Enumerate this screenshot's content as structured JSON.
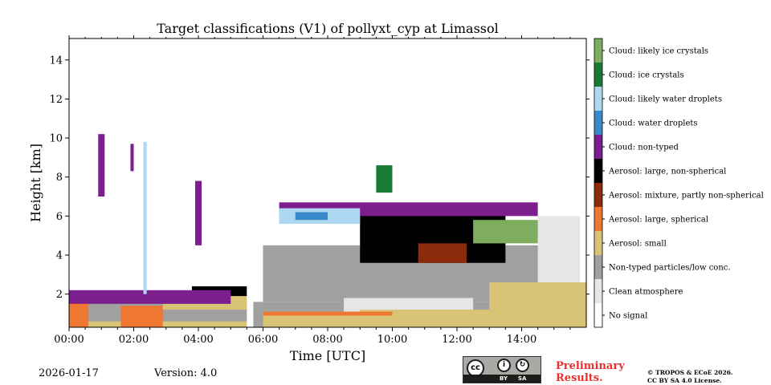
{
  "chart_data": {
    "type": "heatmap",
    "title": "Target classifications (V1) of pollyxt_cyp at Limassol",
    "xlabel": "Time [UTC]",
    "ylabel": "Height [km]",
    "xlim": [
      0,
      16
    ],
    "ylim": [
      0.3,
      15.1
    ],
    "x_ticks": [
      {
        "value": 0,
        "label": "00:00"
      },
      {
        "value": 2,
        "label": "02:00"
      },
      {
        "value": 4,
        "label": "04:00"
      },
      {
        "value": 6,
        "label": "06:00"
      },
      {
        "value": 8,
        "label": "08:00"
      },
      {
        "value": 10,
        "label": "10:00"
      },
      {
        "value": 12,
        "label": "12:00"
      },
      {
        "value": 14,
        "label": "14:00"
      }
    ],
    "y_ticks": [
      {
        "value": 2,
        "label": "2"
      },
      {
        "value": 4,
        "label": "4"
      },
      {
        "value": 6,
        "label": "6"
      },
      {
        "value": 8,
        "label": "8"
      },
      {
        "value": 10,
        "label": "10"
      },
      {
        "value": 12,
        "label": "12"
      },
      {
        "value": 14,
        "label": "14"
      }
    ],
    "classes": [
      {
        "label": "No signal",
        "color": "#ffffff"
      },
      {
        "label": "Clean atmosphere",
        "color": "#e6e6e6"
      },
      {
        "label": "Non-typed particles/low conc.",
        "color": "#a0a0a0"
      },
      {
        "label": "Aerosol: small",
        "color": "#d9c374"
      },
      {
        "label": "Aerosol: large, spherical",
        "color": "#ef7732"
      },
      {
        "label": "Aerosol: mixture, partly non-spherical",
        "color": "#8c2a0c"
      },
      {
        "label": "Aerosol: large, non-spherical",
        "color": "#000000"
      },
      {
        "label": "Cloud: non-typed",
        "color": "#7c1e8e"
      },
      {
        "label": "Cloud: water droplets",
        "color": "#3a8ac9"
      },
      {
        "label": "Cloud: likely water droplets",
        "color": "#acd8f2"
      },
      {
        "label": "Cloud: ice crystals",
        "color": "#187a34"
      },
      {
        "label": "Cloud: likely ice crystals",
        "color": "#7fad60"
      }
    ],
    "layers": [
      {
        "class": "Non-typed particles/low conc.",
        "t_start": 0.0,
        "t_end": 16.0,
        "h_bottom": 0.3,
        "h_top": 1.6
      },
      {
        "class": "Aerosol: small",
        "t_start": 0.0,
        "t_end": 5.5,
        "h_bottom": 0.3,
        "h_top": 0.6
      },
      {
        "class": "Aerosol: large, spherical",
        "t_start": 0.0,
        "t_end": 0.6,
        "h_bottom": 0.3,
        "h_top": 1.9
      },
      {
        "class": "Aerosol: large, spherical",
        "t_start": 1.6,
        "t_end": 2.9,
        "h_bottom": 0.3,
        "h_top": 1.4
      },
      {
        "class": "Aerosol: small",
        "t_start": 2.9,
        "t_end": 5.5,
        "h_bottom": 1.2,
        "h_top": 2.1
      },
      {
        "class": "Non-typed particles/low conc.",
        "t_start": 6.0,
        "t_end": 14.8,
        "h_bottom": 1.6,
        "h_top": 4.5
      },
      {
        "class": "Clean atmosphere",
        "t_start": 8.5,
        "t_end": 12.5,
        "h_bottom": 0.8,
        "h_top": 1.8
      },
      {
        "class": "Aerosol: small",
        "t_start": 6.0,
        "t_end": 9.0,
        "h_bottom": 0.3,
        "h_top": 0.9
      },
      {
        "class": "Aerosol: small",
        "t_start": 9.0,
        "t_end": 16.0,
        "h_bottom": 0.3,
        "h_top": 1.2
      },
      {
        "class": "Aerosol: small",
        "t_start": 13.0,
        "t_end": 16.0,
        "h_bottom": 1.2,
        "h_top": 2.6
      },
      {
        "class": "Aerosol: large, spherical",
        "t_start": 6.0,
        "t_end": 10.0,
        "h_bottom": 0.9,
        "h_top": 1.1
      },
      {
        "class": "Aerosol: large, non-spherical",
        "t_start": 3.8,
        "t_end": 5.5,
        "h_bottom": 1.9,
        "h_top": 2.4
      },
      {
        "class": "Aerosol: large, non-spherical",
        "t_start": 9.0,
        "t_end": 13.5,
        "h_bottom": 3.6,
        "h_top": 6.4
      },
      {
        "class": "Aerosol: mixture, partly non-spherical",
        "t_start": 10.8,
        "t_end": 12.3,
        "h_bottom": 3.6,
        "h_top": 4.6
      },
      {
        "class": "Cloud: non-typed",
        "t_start": 0.0,
        "t_end": 5.0,
        "h_bottom": 1.5,
        "h_top": 2.2
      },
      {
        "class": "Cloud: non-typed",
        "t_start": 6.5,
        "t_end": 14.5,
        "h_bottom": 6.0,
        "h_top": 6.7
      },
      {
        "class": "Cloud: ice crystals",
        "t_start": 9.5,
        "t_end": 10.0,
        "h_bottom": 7.2,
        "h_top": 8.6
      },
      {
        "class": "Cloud: likely ice crystals",
        "t_start": 12.5,
        "t_end": 15.0,
        "h_bottom": 4.6,
        "h_top": 5.8
      },
      {
        "class": "Cloud: likely water droplets",
        "t_start": 6.5,
        "t_end": 9.0,
        "h_bottom": 5.6,
        "h_top": 6.4
      },
      {
        "class": "Cloud: water droplets",
        "t_start": 7.0,
        "t_end": 8.0,
        "h_bottom": 5.8,
        "h_top": 6.2
      },
      {
        "class": "Clean atmosphere",
        "t_start": 14.5,
        "t_end": 15.8,
        "h_bottom": 2.6,
        "h_top": 6.0
      },
      {
        "class": "Cloud: non-typed",
        "t_start": 0.9,
        "t_end": 1.1,
        "h_bottom": 7.0,
        "h_top": 10.2
      },
      {
        "class": "Cloud: non-typed",
        "t_start": 1.9,
        "t_end": 2.0,
        "h_bottom": 8.3,
        "h_top": 9.7
      },
      {
        "class": "Cloud: non-typed",
        "t_start": 3.9,
        "t_end": 4.1,
        "h_bottom": 4.5,
        "h_top": 7.8
      },
      {
        "class": "Cloud: likely water droplets",
        "t_start": 2.3,
        "t_end": 2.4,
        "h_bottom": 2.0,
        "h_top": 9.8
      },
      {
        "class": "No signal",
        "t_start": 5.5,
        "t_end": 5.7,
        "h_bottom": 0.3,
        "h_top": 2.6
      }
    ]
  },
  "footer": {
    "date": "2026-01-17",
    "version": "Version: 4.0",
    "preliminary_line1": "Preliminary",
    "preliminary_line2": "Results.",
    "license_line1": "© TROPOS & ECoE 2026.",
    "license_line2": "CC BY SA 4.0 License.",
    "cc_text": "cc",
    "cc_by": "BY",
    "cc_sa": "SA"
  }
}
